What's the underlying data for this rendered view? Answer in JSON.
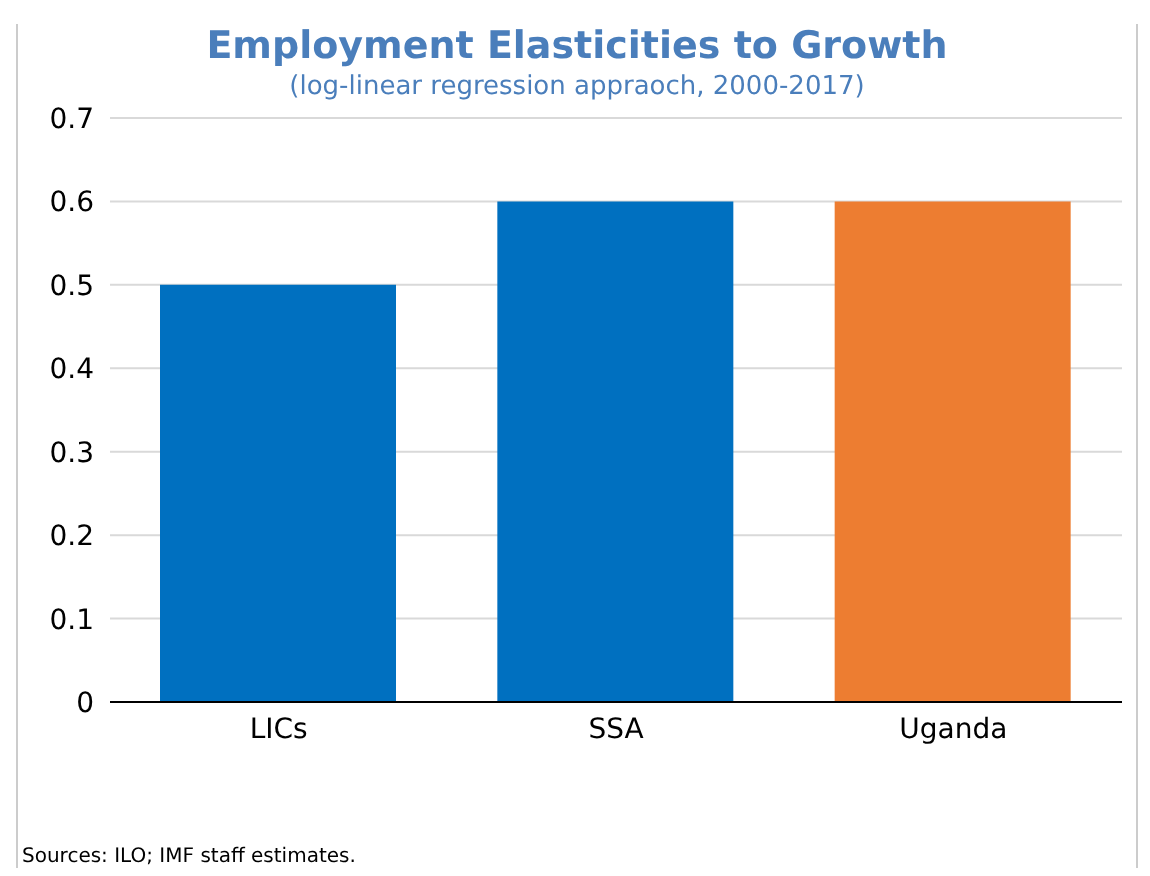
{
  "chart_data": {
    "type": "bar",
    "title": "Employment Elasticities to Growth",
    "subtitle": "(log-linear regression appraoch, 2000-2017)",
    "categories": [
      "LICs",
      "SSA",
      "Uganda"
    ],
    "values": [
      0.5,
      0.6,
      0.6
    ],
    "colors": [
      "#0070c0",
      "#0070c0",
      "#ed7d31"
    ],
    "ylim": [
      0,
      0.7
    ],
    "yticks": [
      0,
      0.1,
      0.2,
      0.3,
      0.4,
      0.5,
      0.6,
      0.7
    ],
    "grid": "y",
    "annotations": [
      "Sources: ILO; IMF staff estimates."
    ]
  }
}
